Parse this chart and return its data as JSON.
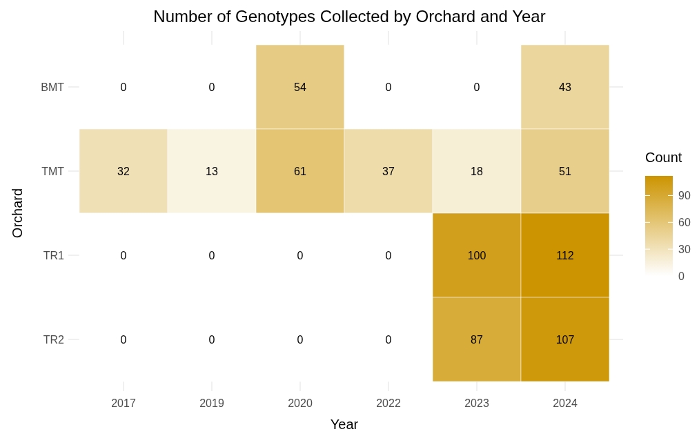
{
  "chart_data": {
    "type": "heatmap",
    "title": "Number of Genotypes Collected by Orchard and Year",
    "xlabel": "Year",
    "ylabel": "Orchard",
    "clabel": "Count",
    "categories": [
      "2017",
      "2019",
      "2020",
      "2022",
      "2023",
      "2024"
    ],
    "y_categories": [
      "BMT",
      "TMT",
      "TR1",
      "TR2"
    ],
    "cells": [
      [
        0,
        0,
        54,
        0,
        0,
        43
      ],
      [
        32,
        13,
        61,
        37,
        18,
        51
      ],
      [
        0,
        0,
        0,
        0,
        100,
        112
      ],
      [
        0,
        0,
        0,
        0,
        87,
        107
      ]
    ],
    "data_labels": true,
    "clim": [
      0,
      112
    ],
    "cticks": [
      0,
      30,
      60,
      90
    ],
    "colors": [
      "#ffffff",
      "#cc9400"
    ],
    "grid": true
  }
}
